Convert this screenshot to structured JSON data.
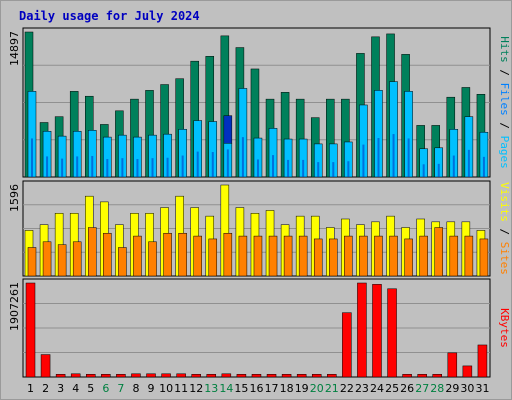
{
  "chart_data": {
    "type": "bar",
    "title": "Daily usage for July 2024",
    "categories": [
      "1",
      "2",
      "3",
      "4",
      "5",
      "6",
      "7",
      "8",
      "9",
      "10",
      "11",
      "12",
      "13",
      "14",
      "15",
      "16",
      "17",
      "18",
      "19",
      "20",
      "21",
      "22",
      "23",
      "24",
      "25",
      "26",
      "27",
      "28",
      "29",
      "30",
      "31"
    ],
    "weekend_days": [
      "6",
      "7",
      "13",
      "14",
      "20",
      "21",
      "27",
      "28"
    ],
    "highlight_day": "14",
    "colors": {
      "background": "#c0c0c0",
      "plot": "#c0c0c0",
      "grid": "#909090",
      "title": "#0000c0",
      "weekday_tick": "#000000",
      "weekend_tick": "#008040",
      "hits": "#00805b",
      "files": "#00c0ff",
      "files_highlight": "#0030c0",
      "visits": "#ffff00",
      "sites": "#ff8000",
      "kbytes": "#ff0000",
      "legend_sep": "#000000"
    },
    "panels": [
      {
        "name": "hits-files",
        "ymax_label": "14897",
        "ymax": 14897,
        "legend": [
          {
            "text": "Hits",
            "color": "#00805b"
          },
          {
            "text": " / ",
            "color": "#000000"
          },
          {
            "text": "Files",
            "color": "#0080ff"
          },
          {
            "text": " / ",
            "color": "#000000"
          },
          {
            "text": "Pages",
            "color": "#00c0ff"
          }
        ],
        "series": [
          {
            "name": "Hits",
            "values": [
              14897,
              5600,
              6200,
              8800,
              8300,
              5400,
              6800,
              8000,
              8900,
              9500,
              10100,
              11900,
              12400,
              14500,
              13300,
              11100,
              8000,
              8700,
              8000,
              6100,
              8000,
              8000,
              12700,
              14400,
              14700,
              12600,
              5300,
              5300,
              8200,
              9200,
              8500
            ]
          },
          {
            "name": "Files",
            "values": [
              8800,
              4700,
              4200,
              4700,
              4800,
              4100,
              4300,
              4100,
              4300,
              4400,
              4900,
              5800,
              5700,
              6300,
              9100,
              4000,
              5000,
              3900,
              3900,
              3400,
              3400,
              3600,
              7400,
              8900,
              9800,
              8800,
              2900,
              3000,
              4900,
              6200,
              4600
            ]
          },
          {
            "name": "Pages",
            "values": [
              0,
              0,
              0,
              0,
              0,
              0,
              0,
              0,
              0,
              0,
              0,
              0,
              0,
              0,
              0,
              0,
              0,
              0,
              0,
              0,
              0,
              0,
              0,
              0,
              0,
              0,
              0,
              0,
              0,
              0,
              0
            ]
          }
        ]
      },
      {
        "name": "visits-sites",
        "ymax_label": "1596",
        "ymax": 1596,
        "legend": [
          {
            "text": "Visits",
            "color": "#ffff00"
          },
          {
            "text": " / ",
            "color": "#000000"
          },
          {
            "text": "Sites",
            "color": "#ff8000"
          }
        ],
        "series": [
          {
            "name": "Visits",
            "values": [
              800,
              900,
              1100,
              1100,
              1400,
              1300,
              900,
              1100,
              1100,
              1200,
              1400,
              1200,
              1050,
              1596,
              1200,
              1100,
              1150,
              900,
              1050,
              1050,
              850,
              1000,
              900,
              950,
              1050,
              850,
              1000,
              950,
              950,
              950,
              800
            ]
          },
          {
            "name": "Sites",
            "values": [
              500,
              600,
              550,
              600,
              850,
              750,
              500,
              700,
              600,
              750,
              750,
              700,
              650,
              750,
              700,
              700,
              700,
              700,
              700,
              650,
              650,
              700,
              700,
              700,
              700,
              650,
              700,
              850,
              700,
              700,
              650
            ]
          }
        ]
      },
      {
        "name": "kbytes",
        "ymax_label": "1907261",
        "ymax": 1907261,
        "legend": [
          {
            "text": "KBytes",
            "color": "#ff0000"
          }
        ],
        "series": [
          {
            "name": "KBytes",
            "values": [
              1907261,
              455000,
              55000,
              65000,
              55000,
              55000,
              55000,
              65000,
              65000,
              65000,
              65000,
              55000,
              55000,
              65000,
              55000,
              55000,
              55000,
              55000,
              55000,
              55000,
              55000,
              1305000,
              1907261,
              1880000,
              1790000,
              55000,
              55000,
              55000,
              490000,
              225000,
              650000
            ]
          }
        ]
      }
    ]
  }
}
